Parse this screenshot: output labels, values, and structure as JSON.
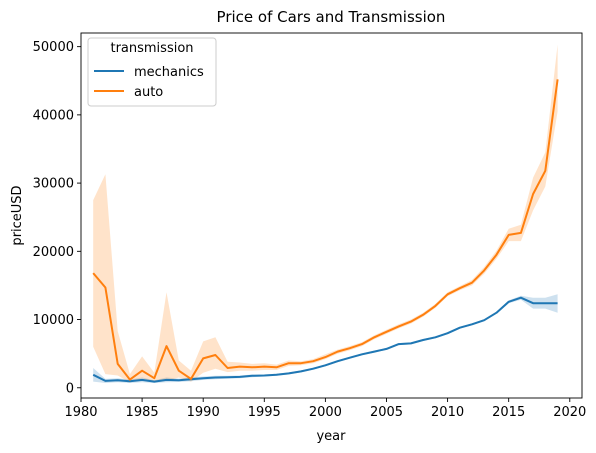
{
  "chart_data": {
    "type": "line",
    "title": "Price of Cars and Transmission",
    "xlabel": "year",
    "ylabel": "priceUSD",
    "xlim": [
      1980,
      2021
    ],
    "ylim": [
      -1500,
      52000
    ],
    "xticks": [
      1980,
      1985,
      1990,
      1995,
      2000,
      2005,
      2010,
      2015,
      2020
    ],
    "yticks": [
      0,
      10000,
      20000,
      30000,
      40000,
      50000
    ],
    "grid": false,
    "legend": {
      "title": "transmission",
      "position": "top-left"
    },
    "x": [
      1981,
      1982,
      1983,
      1984,
      1985,
      1986,
      1987,
      1988,
      1989,
      1990,
      1991,
      1992,
      1993,
      1994,
      1995,
      1996,
      1997,
      1998,
      1999,
      2000,
      2001,
      2002,
      2003,
      2004,
      2005,
      2006,
      2007,
      2008,
      2009,
      2010,
      2011,
      2012,
      2013,
      2014,
      2015,
      2016,
      2017,
      2018,
      2019
    ],
    "series": [
      {
        "name": "mechanics",
        "color": "#1f77b4",
        "values": [
          1900,
          1000,
          1100,
          950,
          1150,
          900,
          1150,
          1100,
          1250,
          1400,
          1500,
          1550,
          1600,
          1750,
          1800,
          1900,
          2100,
          2400,
          2800,
          3300,
          3900,
          4400,
          4900,
          5300,
          5700,
          6400,
          6500,
          7000,
          7400,
          8000,
          8800,
          9300,
          9900,
          11000,
          12600,
          13200,
          12400,
          12400,
          12400
        ],
        "ci_low": [
          900,
          700,
          800,
          700,
          800,
          700,
          800,
          850,
          950,
          1150,
          1250,
          1350,
          1400,
          1550,
          1650,
          1750,
          1950,
          2250,
          2650,
          3150,
          3750,
          4250,
          4750,
          5150,
          5550,
          6250,
          6350,
          6850,
          7250,
          7850,
          8650,
          9150,
          9750,
          10850,
          12400,
          12900,
          11600,
          11600,
          11000
        ],
        "ci_high": [
          2900,
          1300,
          1400,
          1200,
          1500,
          1100,
          1500,
          1350,
          1550,
          1650,
          1750,
          1750,
          1800,
          1950,
          1950,
          2050,
          2250,
          2550,
          2950,
          3450,
          4050,
          4550,
          5050,
          5450,
          5850,
          6550,
          6650,
          7150,
          7550,
          8150,
          8950,
          9450,
          10050,
          11150,
          12800,
          13500,
          13200,
          13200,
          13700
        ]
      },
      {
        "name": "auto",
        "color": "#ff7f0e",
        "values": [
          16800,
          14700,
          3500,
          1200,
          2500,
          1400,
          6100,
          2500,
          1300,
          4300,
          4800,
          2900,
          3100,
          3000,
          3100,
          3000,
          3600,
          3600,
          3900,
          4500,
          5300,
          5800,
          6400,
          7400,
          8200,
          9000,
          9700,
          10700,
          12000,
          13700,
          14600,
          15400,
          17200,
          19500,
          22400,
          22700,
          28400,
          31800,
          45200
        ],
        "ci_low": [
          6000,
          2000,
          1800,
          800,
          1400,
          900,
          1000,
          1500,
          900,
          2200,
          2800,
          2300,
          2500,
          2500,
          2600,
          2600,
          3200,
          3300,
          3600,
          4200,
          5000,
          5500,
          6100,
          7100,
          7900,
          8700,
          9400,
          10400,
          11700,
          13400,
          14300,
          15000,
          16700,
          18900,
          21500,
          21500,
          26000,
          29500,
          40500
        ],
        "ci_high": [
          27500,
          31300,
          8300,
          2000,
          4600,
          2200,
          14000,
          4000,
          2500,
          6800,
          7400,
          3800,
          3700,
          3500,
          3600,
          3400,
          4000,
          3900,
          4200,
          4900,
          5600,
          6100,
          6700,
          7700,
          8500,
          9300,
          10000,
          11000,
          12300,
          14000,
          14900,
          15800,
          17700,
          20100,
          23300,
          23900,
          30800,
          34500,
          50300
        ]
      }
    ]
  }
}
